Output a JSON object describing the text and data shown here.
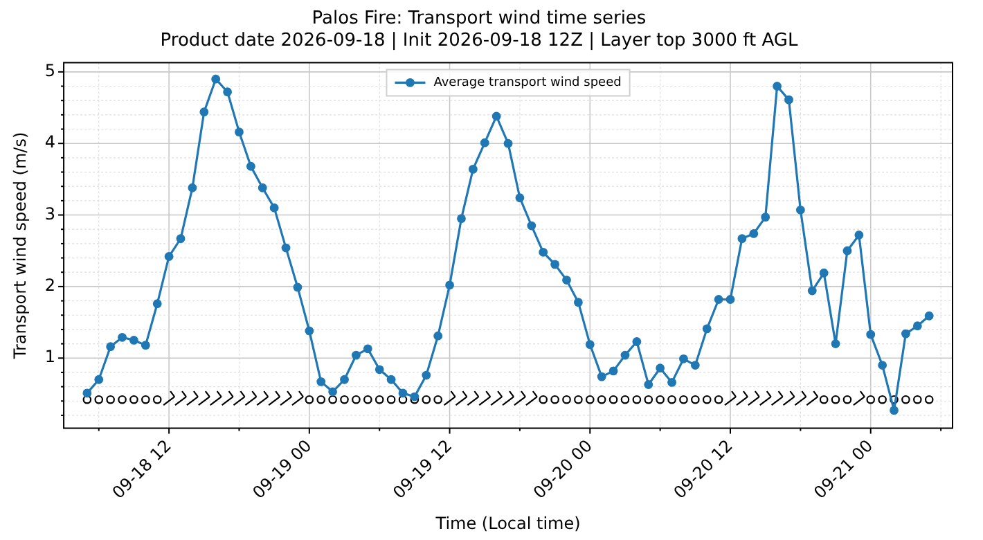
{
  "chart_data": {
    "type": "line",
    "title": "Palos Fire: Transport wind time series",
    "subtitle": "Product date 2026-09-18 | Init 2026-09-18 12Z | Layer top 3000 ft AGL",
    "xlabel": "Time (Local time)",
    "ylabel": "Transport wind speed (m/s)",
    "x": [
      "2026-09-18T05:00",
      "2026-09-18T06:00",
      "2026-09-18T07:00",
      "2026-09-18T08:00",
      "2026-09-18T09:00",
      "2026-09-18T10:00",
      "2026-09-18T11:00",
      "2026-09-18T12:00",
      "2026-09-18T13:00",
      "2026-09-18T14:00",
      "2026-09-18T15:00",
      "2026-09-18T16:00",
      "2026-09-18T17:00",
      "2026-09-18T18:00",
      "2026-09-18T19:00",
      "2026-09-18T20:00",
      "2026-09-18T21:00",
      "2026-09-18T22:00",
      "2026-09-18T23:00",
      "2026-09-19T00:00",
      "2026-09-19T01:00",
      "2026-09-19T02:00",
      "2026-09-19T03:00",
      "2026-09-19T04:00",
      "2026-09-19T05:00",
      "2026-09-19T06:00",
      "2026-09-19T07:00",
      "2026-09-19T08:00",
      "2026-09-19T09:00",
      "2026-09-19T10:00",
      "2026-09-19T11:00",
      "2026-09-19T12:00",
      "2026-09-19T13:00",
      "2026-09-19T14:00",
      "2026-09-19T15:00",
      "2026-09-19T16:00",
      "2026-09-19T17:00",
      "2026-09-19T18:00",
      "2026-09-19T19:00",
      "2026-09-19T20:00",
      "2026-09-19T21:00",
      "2026-09-19T22:00",
      "2026-09-19T23:00",
      "2026-09-20T00:00",
      "2026-09-20T01:00",
      "2026-09-20T02:00",
      "2026-09-20T03:00",
      "2026-09-20T04:00",
      "2026-09-20T05:00",
      "2026-09-20T06:00",
      "2026-09-20T07:00",
      "2026-09-20T08:00",
      "2026-09-20T09:00",
      "2026-09-20T10:00",
      "2026-09-20T11:00",
      "2026-09-20T12:00",
      "2026-09-20T13:00",
      "2026-09-20T14:00",
      "2026-09-20T15:00",
      "2026-09-20T16:00",
      "2026-09-20T17:00",
      "2026-09-20T18:00",
      "2026-09-20T19:00",
      "2026-09-20T20:00",
      "2026-09-20T21:00",
      "2026-09-20T22:00",
      "2026-09-20T23:00",
      "2026-09-21T00:00",
      "2026-09-21T01:00",
      "2026-09-21T02:00",
      "2026-09-21T03:00",
      "2026-09-21T04:00",
      "2026-09-21T05:00"
    ],
    "series": [
      {
        "name": "Average transport wind speed",
        "color": "#1f77b4",
        "values": [
          0.51,
          0.7,
          1.16,
          1.29,
          1.25,
          1.18,
          1.76,
          2.42,
          2.67,
          3.38,
          4.44,
          4.9,
          4.72,
          4.16,
          3.68,
          3.38,
          3.1,
          2.54,
          1.99,
          1.38,
          0.67,
          0.53,
          0.7,
          1.04,
          1.13,
          0.84,
          0.7,
          0.51,
          0.46,
          0.76,
          1.31,
          2.02,
          2.95,
          3.64,
          4.01,
          4.38,
          4.0,
          3.24,
          2.85,
          2.48,
          2.31,
          2.09,
          1.78,
          1.19,
          0.74,
          0.82,
          1.04,
          1.23,
          0.63,
          0.86,
          0.66,
          0.99,
          0.9,
          1.41,
          1.82,
          1.82,
          2.67,
          2.74,
          2.97,
          4.8,
          4.61,
          3.07,
          1.94,
          2.19,
          1.2,
          2.5,
          2.72,
          1.33,
          0.9,
          0.27,
          1.34,
          1.45,
          1.59
        ]
      },
      {
        "type": "scatter",
        "color": "#000000",
        "values": [
          0.42,
          0.42,
          0.42,
          0.42,
          0.42,
          0.42,
          0.42,
          null,
          null,
          null,
          null,
          null,
          null,
          null,
          null,
          null,
          null,
          null,
          null,
          0.42,
          0.42,
          0.42,
          0.42,
          0.42,
          0.42,
          0.42,
          0.42,
          0.42,
          0.42,
          0.42,
          0.42,
          null,
          null,
          null,
          null,
          null,
          null,
          null,
          null,
          0.42,
          0.42,
          0.42,
          0.42,
          0.42,
          0.42,
          0.42,
          0.42,
          0.42,
          0.42,
          0.42,
          0.42,
          0.42,
          0.42,
          0.42,
          0.42,
          null,
          null,
          null,
          null,
          null,
          null,
          null,
          null,
          0.42,
          0.42,
          0.42,
          null,
          0.42,
          0.42,
          0.42,
          0.42,
          0.42,
          0.42
        ]
      }
    ],
    "xlim": [
      "2026-09-18T03:00",
      "2026-09-21T07:00"
    ],
    "xticks": [
      {
        "value": "2026-09-18T06:00",
        "label": null
      },
      {
        "value": "2026-09-18T12:00",
        "label": "09-18 12"
      },
      {
        "value": "2026-09-18T18:00",
        "label": null
      },
      {
        "value": "2026-09-19T00:00",
        "label": "09-19 00"
      },
      {
        "value": "2026-09-19T06:00",
        "label": null
      },
      {
        "value": "2026-09-19T12:00",
        "label": "09-19 12"
      },
      {
        "value": "2026-09-19T18:00",
        "label": null
      },
      {
        "value": "2026-09-20T00:00",
        "label": "09-20 00"
      },
      {
        "value": "2026-09-20T06:00",
        "label": null
      },
      {
        "value": "2026-09-20T12:00",
        "label": "09-20 12"
      },
      {
        "value": "2026-09-20T18:00",
        "label": null
      },
      {
        "value": "2026-09-21T00:00",
        "label": "09-21 00"
      },
      {
        "value": "2026-09-21T06:00",
        "label": null
      }
    ],
    "ylim": [
      0.02,
      5.13
    ],
    "yticks": [
      {
        "value": 0.2,
        "label": null
      },
      {
        "value": 0.4,
        "label": null
      },
      {
        "value": 0.6,
        "label": null
      },
      {
        "value": 0.8,
        "label": null
      },
      1,
      {
        "value": 1.2,
        "label": null
      },
      {
        "value": 1.4,
        "label": null
      },
      {
        "value": 1.6,
        "label": null
      },
      {
        "value": 1.8,
        "label": null
      },
      2,
      {
        "value": 2.2,
        "label": null
      },
      {
        "value": 2.4,
        "label": null
      },
      {
        "value": 2.6,
        "label": null
      },
      {
        "value": 2.8,
        "label": null
      },
      3,
      {
        "value": 3.2,
        "label": null
      },
      {
        "value": 3.4,
        "label": null
      },
      {
        "value": 3.6,
        "label": null
      },
      {
        "value": 3.8,
        "label": null
      },
      4,
      {
        "value": 4.2,
        "label": null
      },
      {
        "value": 4.4,
        "label": null
      },
      {
        "value": 4.6,
        "label": null
      },
      {
        "value": 4.8,
        "label": null
      },
      5
    ],
    "grid": true,
    "legend": "top",
    "marker": "circle",
    "line_style": "solid"
  }
}
